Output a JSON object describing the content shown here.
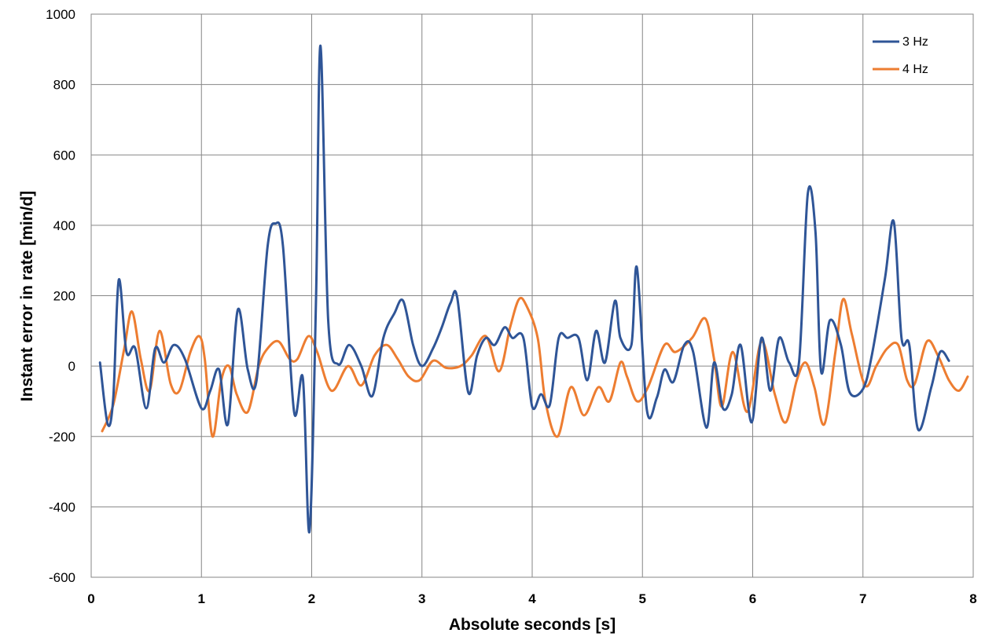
{
  "chart_data": {
    "type": "line",
    "xlabel": "Absolute seconds [s]",
    "ylabel": "Instant error in rate [min/d]",
    "xlim": [
      0,
      8
    ],
    "ylim": [
      -600,
      1000
    ],
    "x_ticks": [
      0,
      1,
      2,
      3,
      4,
      5,
      6,
      7,
      8
    ],
    "y_ticks": [
      -600,
      -400,
      -200,
      0,
      200,
      400,
      600,
      800,
      1000
    ],
    "x_tick_labels": [
      "0",
      "1",
      "2",
      "3",
      "4",
      "5",
      "6",
      "7",
      "8"
    ],
    "y_tick_labels": [
      "-600",
      "-400",
      "-200",
      "0",
      "200",
      "400",
      "600",
      "800",
      "1000"
    ],
    "grid": true,
    "legend_position": "top-right",
    "series": [
      {
        "name": "3 Hz",
        "color": "#2f5597",
        "points": [
          [
            0.08,
            10
          ],
          [
            0.15,
            -165
          ],
          [
            0.2,
            -90
          ],
          [
            0.25,
            245
          ],
          [
            0.32,
            40
          ],
          [
            0.4,
            50
          ],
          [
            0.5,
            -120
          ],
          [
            0.58,
            50
          ],
          [
            0.66,
            10
          ],
          [
            0.75,
            60
          ],
          [
            0.85,
            20
          ],
          [
            1.0,
            -120
          ],
          [
            1.08,
            -70
          ],
          [
            1.16,
            -10
          ],
          [
            1.24,
            -165
          ],
          [
            1.33,
            160
          ],
          [
            1.42,
            -10
          ],
          [
            1.5,
            -40
          ],
          [
            1.6,
            340
          ],
          [
            1.67,
            405
          ],
          [
            1.74,
            340
          ],
          [
            1.84,
            -130
          ],
          [
            1.92,
            -35
          ],
          [
            1.98,
            -470
          ],
          [
            2.04,
            200
          ],
          [
            2.08,
            910
          ],
          [
            2.15,
            130
          ],
          [
            2.24,
            5
          ],
          [
            2.34,
            60
          ],
          [
            2.45,
            0
          ],
          [
            2.55,
            -85
          ],
          [
            2.65,
            80
          ],
          [
            2.75,
            150
          ],
          [
            2.83,
            185
          ],
          [
            2.92,
            60
          ],
          [
            3.0,
            0
          ],
          [
            3.1,
            50
          ],
          [
            3.18,
            110
          ],
          [
            3.26,
            180
          ],
          [
            3.32,
            195
          ],
          [
            3.42,
            -75
          ],
          [
            3.5,
            30
          ],
          [
            3.58,
            80
          ],
          [
            3.66,
            60
          ],
          [
            3.75,
            110
          ],
          [
            3.82,
            80
          ],
          [
            3.92,
            80
          ],
          [
            4.0,
            -115
          ],
          [
            4.08,
            -80
          ],
          [
            4.16,
            -110
          ],
          [
            4.24,
            80
          ],
          [
            4.32,
            80
          ],
          [
            4.42,
            80
          ],
          [
            4.5,
            -40
          ],
          [
            4.58,
            100
          ],
          [
            4.66,
            10
          ],
          [
            4.75,
            185
          ],
          [
            4.8,
            80
          ],
          [
            4.9,
            60
          ],
          [
            4.95,
            280
          ],
          [
            5.04,
            -125
          ],
          [
            5.13,
            -90
          ],
          [
            5.2,
            -10
          ],
          [
            5.28,
            -45
          ],
          [
            5.38,
            60
          ],
          [
            5.46,
            40
          ],
          [
            5.58,
            -175
          ],
          [
            5.65,
            10
          ],
          [
            5.73,
            -120
          ],
          [
            5.81,
            -80
          ],
          [
            5.89,
            60
          ],
          [
            5.99,
            -160
          ],
          [
            6.08,
            80
          ],
          [
            6.16,
            -70
          ],
          [
            6.24,
            80
          ],
          [
            6.33,
            10
          ],
          [
            6.42,
            10
          ],
          [
            6.5,
            490
          ],
          [
            6.57,
            380
          ],
          [
            6.62,
            -15
          ],
          [
            6.7,
            130
          ],
          [
            6.8,
            60
          ],
          [
            6.88,
            -75
          ],
          [
            7.0,
            -65
          ],
          [
            7.08,
            30
          ],
          [
            7.2,
            250
          ],
          [
            7.28,
            410
          ],
          [
            7.35,
            80
          ],
          [
            7.42,
            60
          ],
          [
            7.5,
            -180
          ],
          [
            7.62,
            -60
          ],
          [
            7.7,
            40
          ],
          [
            7.78,
            15
          ]
        ]
      },
      {
        "name": "4 Hz",
        "color": "#ed7d31",
        "points": [
          [
            0.1,
            -185
          ],
          [
            0.2,
            -110
          ],
          [
            0.3,
            50
          ],
          [
            0.37,
            155
          ],
          [
            0.45,
            20
          ],
          [
            0.53,
            -70
          ],
          [
            0.62,
            100
          ],
          [
            0.72,
            -50
          ],
          [
            0.8,
            -70
          ],
          [
            0.9,
            40
          ],
          [
            0.98,
            85
          ],
          [
            1.03,
            20
          ],
          [
            1.1,
            -200
          ],
          [
            1.18,
            -40
          ],
          [
            1.25,
            0
          ],
          [
            1.32,
            -80
          ],
          [
            1.42,
            -130
          ],
          [
            1.52,
            0
          ],
          [
            1.6,
            50
          ],
          [
            1.7,
            70
          ],
          [
            1.8,
            20
          ],
          [
            1.87,
            20
          ],
          [
            1.97,
            85
          ],
          [
            2.05,
            40
          ],
          [
            2.18,
            -70
          ],
          [
            2.33,
            0
          ],
          [
            2.45,
            -55
          ],
          [
            2.57,
            30
          ],
          [
            2.68,
            60
          ],
          [
            2.78,
            20
          ],
          [
            2.88,
            -30
          ],
          [
            2.98,
            -40
          ],
          [
            3.1,
            15
          ],
          [
            3.22,
            -5
          ],
          [
            3.35,
            0
          ],
          [
            3.45,
            30
          ],
          [
            3.58,
            85
          ],
          [
            3.7,
            -15
          ],
          [
            3.8,
            110
          ],
          [
            3.88,
            190
          ],
          [
            3.95,
            170
          ],
          [
            4.05,
            80
          ],
          [
            4.12,
            -100
          ],
          [
            4.23,
            -200
          ],
          [
            4.35,
            -60
          ],
          [
            4.47,
            -140
          ],
          [
            4.6,
            -60
          ],
          [
            4.7,
            -100
          ],
          [
            4.8,
            10
          ],
          [
            4.86,
            -30
          ],
          [
            4.95,
            -100
          ],
          [
            5.05,
            -60
          ],
          [
            5.2,
            60
          ],
          [
            5.3,
            40
          ],
          [
            5.45,
            80
          ],
          [
            5.57,
            135
          ],
          [
            5.65,
            20
          ],
          [
            5.72,
            -115
          ],
          [
            5.82,
            40
          ],
          [
            5.95,
            -130
          ],
          [
            6.08,
            70
          ],
          [
            6.2,
            -80
          ],
          [
            6.3,
            -160
          ],
          [
            6.4,
            -40
          ],
          [
            6.48,
            10
          ],
          [
            6.56,
            -60
          ],
          [
            6.65,
            -165
          ],
          [
            6.75,
            40
          ],
          [
            6.82,
            190
          ],
          [
            6.9,
            90
          ],
          [
            7.02,
            -55
          ],
          [
            7.12,
            0
          ],
          [
            7.22,
            50
          ],
          [
            7.32,
            60
          ],
          [
            7.4,
            -40
          ],
          [
            7.47,
            -50
          ],
          [
            7.58,
            70
          ],
          [
            7.68,
            30
          ],
          [
            7.78,
            -40
          ],
          [
            7.87,
            -70
          ],
          [
            7.95,
            -30
          ]
        ]
      }
    ]
  }
}
